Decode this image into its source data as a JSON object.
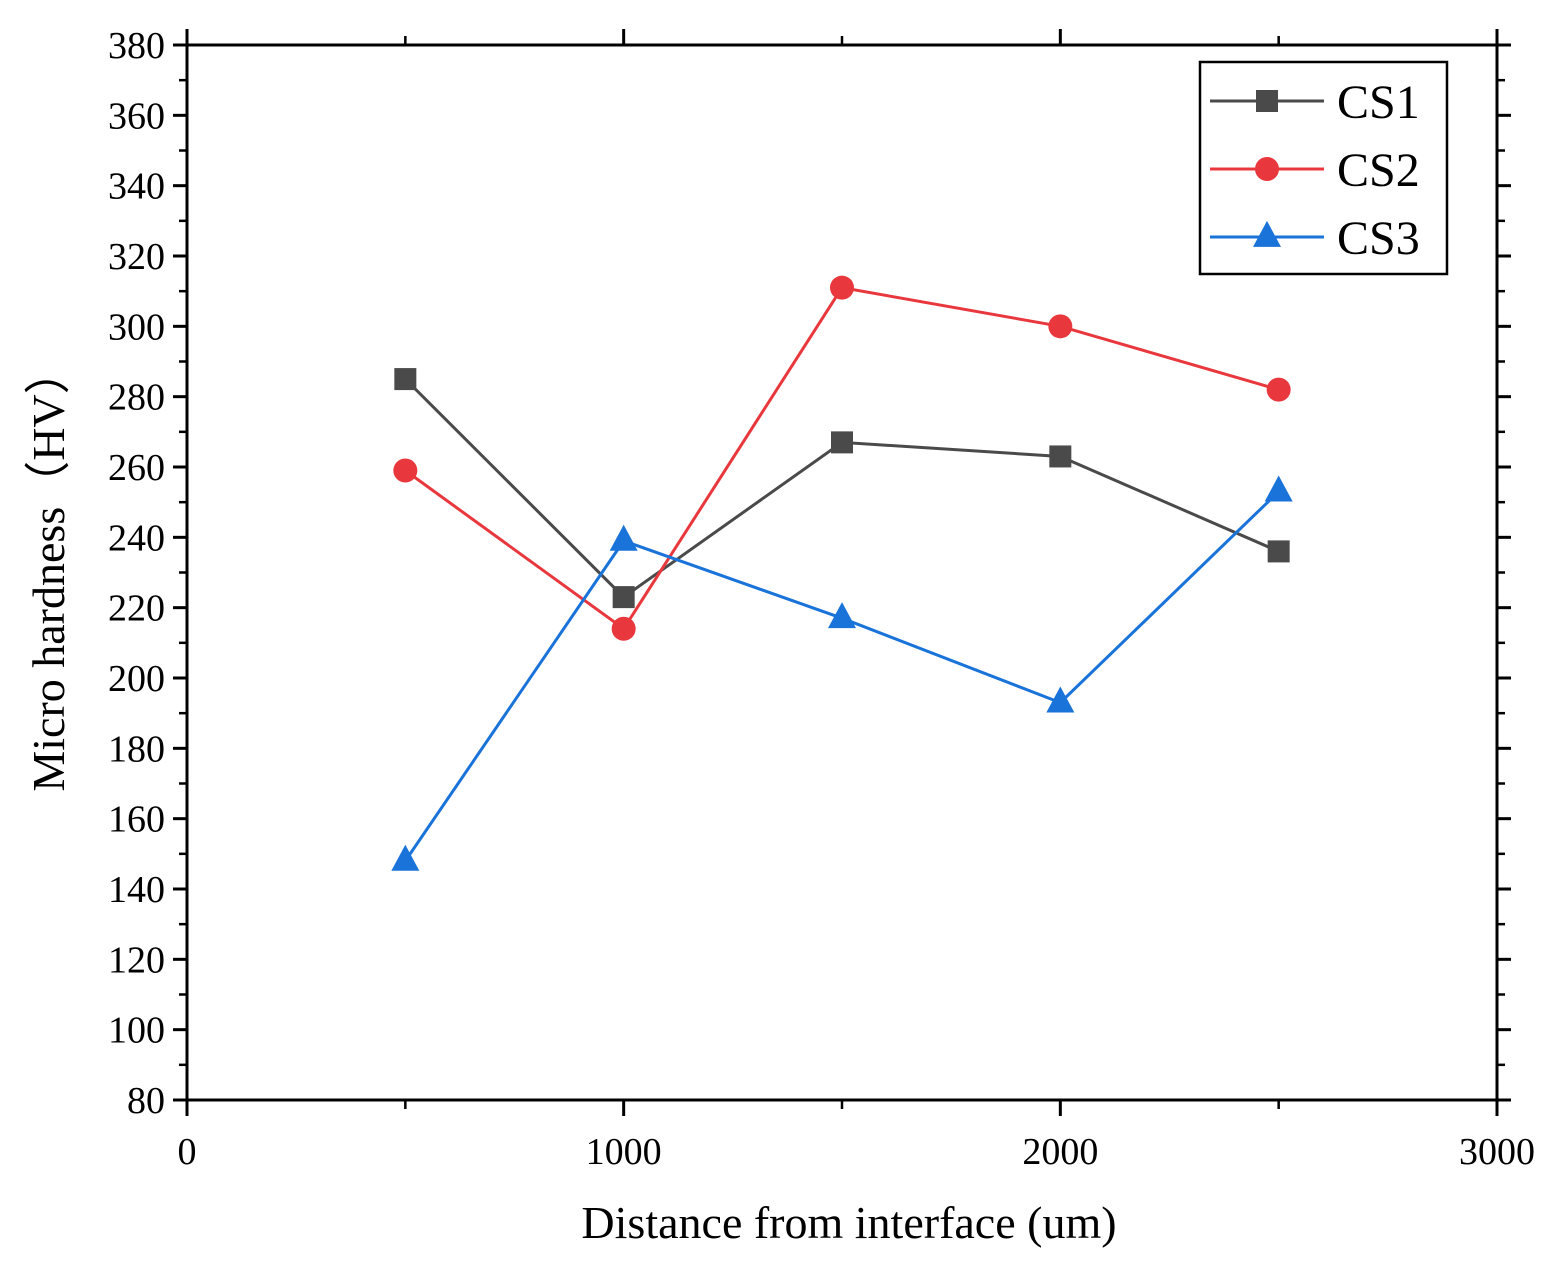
{
  "chart_data": {
    "type": "line",
    "title": "",
    "xlabel": "Distance from interface (um)",
    "ylabel": "Micro hardness（HV）",
    "xlim": [
      0,
      3000
    ],
    "ylim": [
      80,
      380
    ],
    "x_ticks": [
      0,
      1000,
      2000,
      3000
    ],
    "x_minor_ticks": [
      500,
      1500,
      2500
    ],
    "y_ticks": [
      80,
      100,
      120,
      140,
      160,
      180,
      200,
      220,
      240,
      260,
      280,
      300,
      320,
      340,
      360,
      380
    ],
    "grid": false,
    "legend": {
      "position": "top-right"
    },
    "series": [
      {
        "name": "CS1",
        "color": "#4a4a4a",
        "marker": "square",
        "x": [
          500,
          1000,
          1500,
          2000,
          2500
        ],
        "y": [
          285,
          223,
          267,
          263,
          236
        ]
      },
      {
        "name": "CS2",
        "color": "#e8383d",
        "marker": "circle",
        "x": [
          500,
          1000,
          1500,
          2000,
          2500
        ],
        "y": [
          259,
          214,
          311,
          300,
          282
        ]
      },
      {
        "name": "CS3",
        "color": "#1a73d9",
        "marker": "triangle",
        "x": [
          500,
          1000,
          1500,
          2000,
          2500
        ],
        "y": [
          148,
          239,
          217,
          193,
          253
        ]
      }
    ]
  }
}
